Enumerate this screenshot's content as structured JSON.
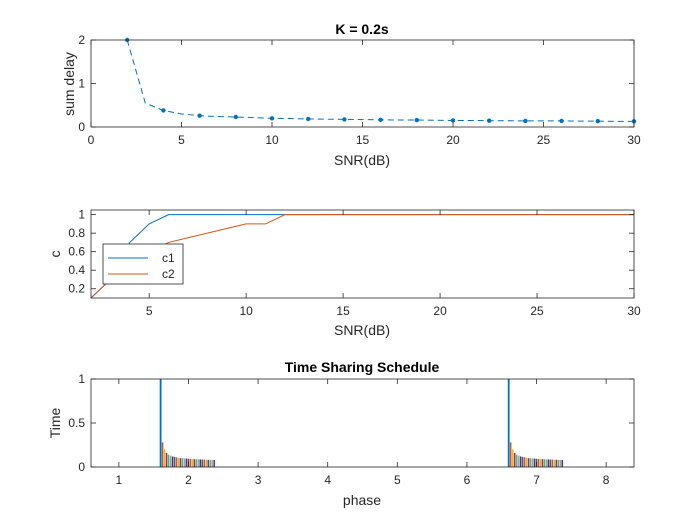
{
  "colors": {
    "blue": "#0072BD",
    "red": "#D95319",
    "bar_palette": [
      "#0072BD",
      "#D95319",
      "#EDB120",
      "#7E2F8E",
      "#77AC30",
      "#4DBEEE",
      "#A2142F"
    ],
    "axis": "#262626"
  },
  "chart_data": [
    {
      "type": "line",
      "title": "K = 0.2s",
      "xlabel": "SNR(dB)",
      "ylabel": "sum delay",
      "xlim": [
        0,
        30
      ],
      "ylim": [
        0,
        2
      ],
      "xticks": [
        0,
        5,
        10,
        15,
        20,
        25,
        30
      ],
      "yticks": [
        0,
        1,
        2
      ],
      "grid": false,
      "series": [
        {
          "style": "dashed-with-markers",
          "color": "#0072BD",
          "x": [
            2,
            3,
            4,
            5,
            6,
            7,
            8,
            9,
            10,
            11,
            12,
            13,
            14,
            15,
            16,
            17,
            18,
            19,
            20,
            21,
            22,
            23,
            24,
            25,
            26,
            27,
            28,
            29,
            30
          ],
          "y": [
            2.0,
            0.55,
            0.38,
            0.3,
            0.26,
            0.24,
            0.23,
            0.215,
            0.2,
            0.195,
            0.185,
            0.18,
            0.175,
            0.17,
            0.165,
            0.16,
            0.16,
            0.155,
            0.15,
            0.15,
            0.145,
            0.145,
            0.14,
            0.14,
            0.14,
            0.135,
            0.135,
            0.13,
            0.13
          ],
          "marker_x": [
            2,
            4,
            6,
            8,
            10,
            12,
            14,
            16,
            18,
            20,
            22,
            24,
            26,
            28,
            30
          ]
        }
      ]
    },
    {
      "type": "line",
      "title": "",
      "xlabel": "SNR(dB)",
      "ylabel": "c",
      "xlim": [
        2,
        30
      ],
      "ylim": [
        0.1,
        1.05
      ],
      "xticks": [
        5,
        10,
        15,
        20,
        25,
        30
      ],
      "yticks": [
        0.2,
        0.4,
        0.6,
        0.8,
        1
      ],
      "ytick_labels": [
        "0.2",
        "0.4",
        "0.6",
        "0.8",
        "1"
      ],
      "grid": false,
      "legend": {
        "placement": "bottom-left",
        "entries": [
          "c1",
          "c2"
        ]
      },
      "series": [
        {
          "name": "c1",
          "color": "#0072BD",
          "x": [
            2,
            3,
            4,
            5,
            6,
            7,
            30
          ],
          "y": [
            0.1,
            0.3,
            0.7,
            0.9,
            1.0,
            1.0,
            1.0
          ]
        },
        {
          "name": "c2",
          "color": "#D95319",
          "x": [
            2,
            3,
            4,
            5,
            6,
            7,
            8,
            9,
            10,
            11,
            12,
            13,
            30
          ],
          "y": [
            0.1,
            0.3,
            0.5,
            0.6,
            0.7,
            0.75,
            0.8,
            0.85,
            0.9,
            0.9,
            1.0,
            1.0,
            1.0
          ]
        }
      ]
    },
    {
      "type": "bar",
      "title": "Time Sharing Schedule",
      "xlabel": "phase",
      "ylabel": "Time",
      "xlim": [
        0.6,
        8.4
      ],
      "ylim": [
        0,
        1
      ],
      "xticks": [
        1,
        2,
        3,
        4,
        5,
        6,
        7,
        8
      ],
      "yticks": [
        0,
        0.5,
        1
      ],
      "grid": false,
      "groups": [
        {
          "start": 1.6,
          "step": 0.0285
        },
        {
          "start": 6.6,
          "step": 0.0285
        }
      ],
      "values": [
        1.0,
        0.28,
        0.2,
        0.16,
        0.14,
        0.13,
        0.12,
        0.115,
        0.11,
        0.105,
        0.1,
        0.1,
        0.098,
        0.096,
        0.094,
        0.092,
        0.09,
        0.089,
        0.088,
        0.087,
        0.086,
        0.085,
        0.084,
        0.083,
        0.082,
        0.081,
        0.08,
        0.08
      ]
    }
  ]
}
